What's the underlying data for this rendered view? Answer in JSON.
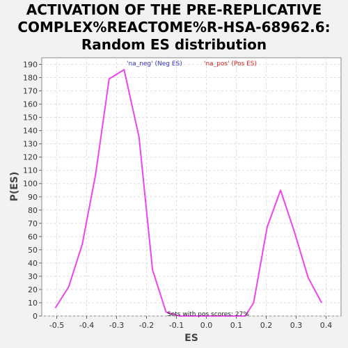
{
  "chart_data": {
    "type": "line",
    "title_lines": [
      "ACTIVATION OF THE PRE-REPLICATIVE",
      "COMPLEX%REACTOME%R-HSA-68962.6:",
      "Random ES distribution"
    ],
    "xlabel": "ES",
    "ylabel": "P(ES)",
    "xlim": [
      -0.55,
      0.45
    ],
    "ylim": [
      0,
      195
    ],
    "x_ticks": [
      -0.5,
      -0.4,
      -0.3,
      -0.2,
      -0.1,
      0.0,
      0.1,
      0.2,
      0.3,
      0.4
    ],
    "x_tick_labels": [
      "-0.5",
      "-0.4",
      "-0.3",
      "-0.2",
      "-0.1",
      "0.0",
      "0.1",
      "0.2",
      "0.3",
      "0.4"
    ],
    "y_ticks": [
      0,
      10,
      20,
      30,
      40,
      50,
      60,
      70,
      80,
      90,
      100,
      110,
      120,
      130,
      140,
      150,
      160,
      170,
      180,
      190
    ],
    "grid": true,
    "legend": [
      {
        "label": "'na_neg' (Neg ES)",
        "color": "#3333cc"
      },
      {
        "label": "'na_pos' (Pos ES)",
        "color": "#dd2222"
      }
    ],
    "annotation": "Sets with pos scores: 27%",
    "series": [
      {
        "color": "#ee44ee",
        "x": [
          -0.505,
          -0.46,
          -0.415,
          -0.37,
          -0.325,
          -0.275,
          -0.225,
          -0.18,
          -0.135,
          -0.09,
          -0.045,
          0.0,
          0.045,
          0.09,
          0.13,
          0.158,
          0.203,
          0.248,
          0.295,
          0.34,
          0.385
        ],
        "y": [
          6,
          22,
          54,
          107,
          179,
          186,
          135,
          35,
          3,
          0,
          0,
          0,
          0,
          0,
          0,
          10,
          67,
          95,
          63,
          29,
          10
        ]
      }
    ]
  }
}
